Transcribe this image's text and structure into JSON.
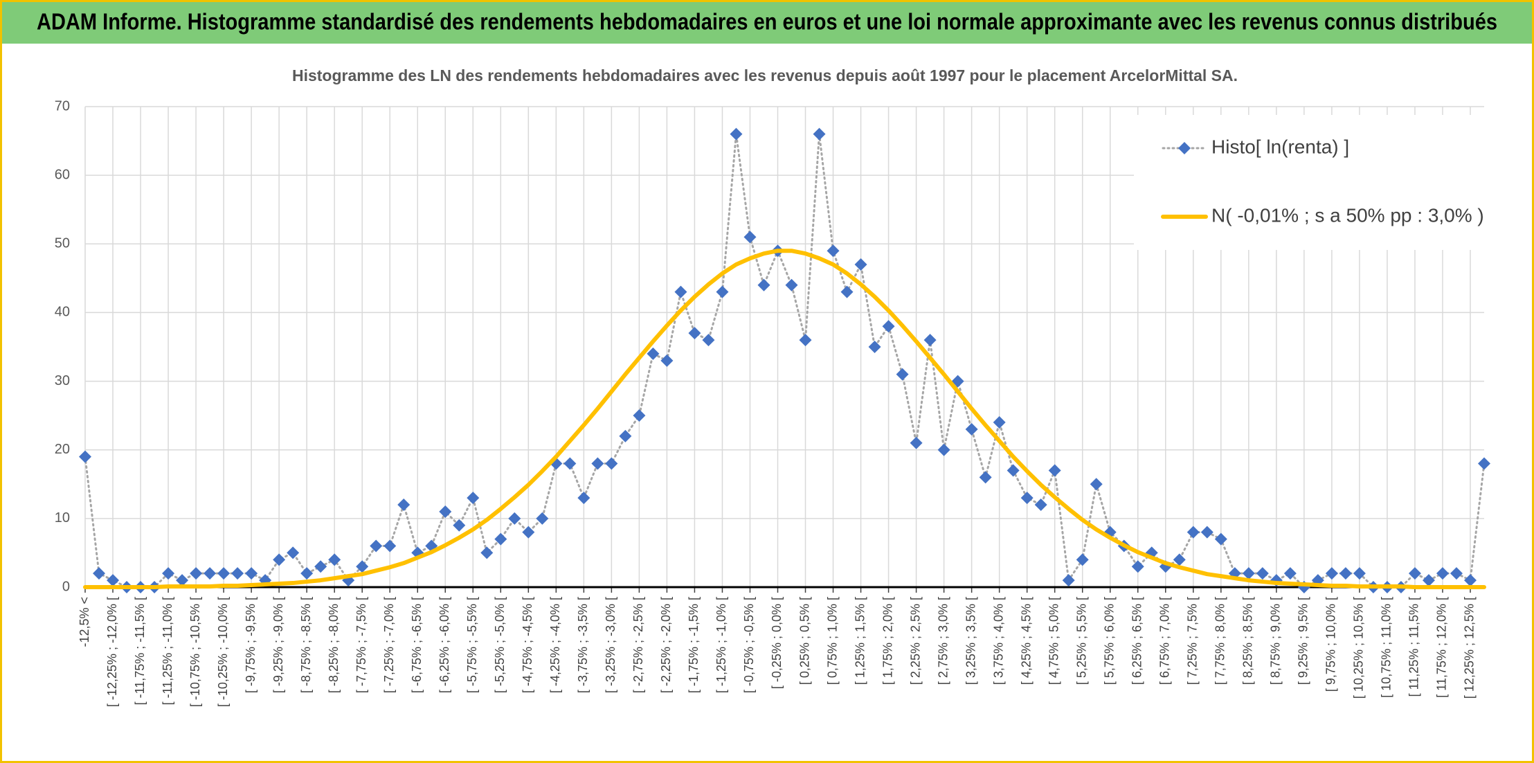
{
  "chart_data": {
    "type": "line",
    "title": "ADAM Informe. Histogramme standardisé des rendements hebdomadaires en euros et une loi normale approximante avec les revenus connus distribués",
    "subtitle": "Histogramme des LN des rendements hebdomadaires avec les revenus depuis août 1997 pour le placement ArcelorMittal SA.",
    "categories": [
      "-12,5% <",
      null,
      "[ -12,25% ; -12,0% [",
      null,
      "[ -11,75% ; -11,5% [",
      null,
      "[ -11,25% ; -11,0% [",
      null,
      "[ -10,75% ; -10,5% [",
      null,
      "[ -10,25% ; -10,0% [",
      null,
      "[ -9,75% ; -9,5% [",
      null,
      "[ -9,25% ; -9,0% [",
      null,
      "[ -8,75% ; -8,5% [",
      null,
      "[ -8,25% ; -8,0% [",
      null,
      "[ -7,75% ; -7,5% [",
      null,
      "[ -7,25% ; -7,0% [",
      null,
      "[ -6,75% ; -6,5% [",
      null,
      "[ -6,25% ; -6,0% [",
      null,
      "[ -5,75% ; -5,5% [",
      null,
      "[ -5,25% ; -5,0% [",
      null,
      "[ -4,75% ; -4,5% [",
      null,
      "[ -4,25% ; -4,0% [",
      null,
      "[ -3,75% ; -3,5% [",
      null,
      "[ -3,25% ; -3,0% [",
      null,
      "[ -2,75% ; -2,5% [",
      null,
      "[ -2,25% ; -2,0% [",
      null,
      "[ -1,75% ; -1,5% [",
      null,
      "[ -1,25% ; -1,0% [",
      null,
      "[ -0,75% ; -0,5% [",
      null,
      "[ -0,25% ; 0,0% [",
      null,
      "[ 0,25% ; 0,5% [",
      null,
      "[ 0,75% ; 1,0% [",
      null,
      "[ 1,25% ; 1,5% [",
      null,
      "[ 1,75% ; 2,0% [",
      null,
      "[ 2,25% ; 2,5% [",
      null,
      "[ 2,75% ; 3,0% [",
      null,
      "[ 3,25% ; 3,5% [",
      null,
      "[ 3,75% ; 4,0% [",
      null,
      "[ 4,25% ; 4,5% [",
      null,
      "[ 4,75% ; 5,0% [",
      null,
      "[ 5,25% ; 5,5% [",
      null,
      "[ 5,75% ; 6,0% [",
      null,
      "[ 6,25% ; 6,5% [",
      null,
      "[ 6,75% ; 7,0% [",
      null,
      "[ 7,25% ; 7,5% [",
      null,
      "[ 7,75% ; 8,0% [",
      null,
      "[ 8,25% ; 8,5% [",
      null,
      "[ 8,75% ; 9,0% [",
      null,
      "[ 9,25% ; 9,5% [",
      null,
      "[ 9,75% ; 10,0% [",
      null,
      "[ 10,25% ; 10,5% [",
      null,
      "[ 10,75% ; 11,0% [",
      null,
      "[ 11,25% ; 11,5% [",
      null,
      "[ 11,75% ; 12,0% [",
      null,
      "[ 12,25% ; 12,5% [",
      null
    ],
    "series": [
      {
        "name": "Histo[ ln(renta) ]",
        "color": "#4472c4",
        "line_color": "#a6a6a6",
        "line_style": "dotted",
        "marker": "diamond",
        "values": [
          19,
          2,
          1,
          0,
          0,
          0,
          2,
          1,
          2,
          2,
          2,
          2,
          2,
          1,
          4,
          5,
          2,
          3,
          4,
          1,
          3,
          6,
          6,
          12,
          5,
          6,
          11,
          9,
          13,
          5,
          7,
          10,
          8,
          10,
          18,
          18,
          13,
          18,
          18,
          22,
          25,
          34,
          33,
          43,
          37,
          36,
          43,
          66,
          51,
          44,
          49,
          44,
          36,
          66,
          49,
          43,
          47,
          35,
          38,
          31,
          21,
          36,
          20,
          30,
          23,
          16,
          24,
          17,
          13,
          12,
          17,
          1,
          4,
          15,
          8,
          6,
          3,
          5,
          3,
          4,
          8,
          8,
          7,
          2,
          2,
          2,
          1,
          2,
          0,
          1,
          2,
          2,
          2,
          0,
          0,
          0,
          2,
          1,
          2,
          2,
          1,
          18
        ]
      },
      {
        "name": "N( -0,01% ; s a 50% pp : 3,0% )",
        "color": "#ffc000",
        "marker": "none",
        "values": [
          0,
          0,
          0,
          0,
          0,
          0,
          0.1,
          0.1,
          0.1,
          0.1,
          0.2,
          0.2,
          0.3,
          0.4,
          0.5,
          0.6,
          0.8,
          1.0,
          1.3,
          1.6,
          1.9,
          2.4,
          2.9,
          3.5,
          4.3,
          5.1,
          6.1,
          7.2,
          8.4,
          9.8,
          11.4,
          13.1,
          14.9,
          16.9,
          19.0,
          21.3,
          23.6,
          26.0,
          28.5,
          31.0,
          33.4,
          35.8,
          38.1,
          40.3,
          42.3,
          44.1,
          45.7,
          47.0,
          47.9,
          48.6,
          49.0,
          49.0,
          48.6,
          47.9,
          47.0,
          45.7,
          44.1,
          42.3,
          40.3,
          38.1,
          35.8,
          33.4,
          31.0,
          28.5,
          26.0,
          23.6,
          21.3,
          19.0,
          16.9,
          14.9,
          13.1,
          11.4,
          9.8,
          8.4,
          7.2,
          6.1,
          5.1,
          4.3,
          3.5,
          2.9,
          2.4,
          1.9,
          1.6,
          1.3,
          1.0,
          0.8,
          0.6,
          0.5,
          0.4,
          0.3,
          0.2,
          0.2,
          0.1,
          0.1,
          0.1,
          0.1,
          0,
          0,
          0,
          0,
          0,
          0
        ]
      }
    ],
    "ylim": [
      0,
      70
    ],
    "yticks": [
      0,
      10,
      20,
      30,
      40,
      50,
      60,
      70
    ],
    "grid": true,
    "legend": "top-right"
  }
}
